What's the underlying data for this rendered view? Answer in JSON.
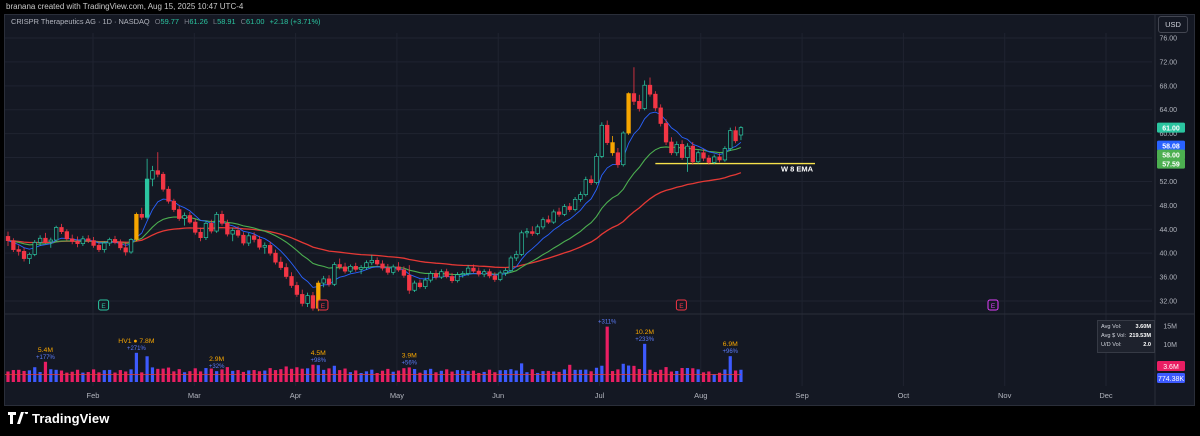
{
  "credit": "branana created with TradingView.com, Aug 15, 2025 10:47 UTC-4",
  "legend": {
    "symbol": "CRISPR Therapeutics AG · 1D · NASDAQ",
    "open_label": "O",
    "open": "59.77",
    "high_label": "H",
    "high": "61.26",
    "low_label": "L",
    "low": "58.91",
    "close_label": "C",
    "close": "61.00",
    "change": "+2.18 (+3.71%)"
  },
  "currency_button": "USD",
  "brand": "TradingView",
  "volume_stats": {
    "rows": [
      {
        "label": "Avg Vol:",
        "value": "3.60M"
      },
      {
        "label": "Avg $ Vol:",
        "value": "219.53M"
      },
      {
        "label": "U/D Vol:",
        "value": "2.0"
      }
    ]
  },
  "colors": {
    "up": "#2bc5a0",
    "down": "#f23645",
    "pocket": "#f7a600",
    "ema_blue": "#2962ff",
    "ema_green": "#4caf50",
    "ema_red": "#e53935",
    "hline": "#f7e24b",
    "vol_up": "#3d5afe",
    "vol_down": "#e91e63",
    "vol_label": "#f7a600"
  },
  "chart_data": {
    "type": "candlestick",
    "ticker": "CRSP",
    "timeframe": "1D",
    "price_axis_ticks": [
      76,
      72,
      68,
      64,
      60,
      56,
      52,
      48,
      44,
      40,
      36,
      32
    ],
    "price_range": [
      30,
      78
    ],
    "month_labels": [
      "Feb",
      "Mar",
      "Apr",
      "May",
      "Jun",
      "Jul",
      "Aug",
      "Sep",
      "Oct",
      "Nov",
      "Dec"
    ],
    "volume_axis_ticks": [
      "15M",
      "10M",
      "5M"
    ],
    "candles": [
      [
        42.8,
        43.6,
        41.2,
        42.1
      ],
      [
        42.1,
        42.5,
        40.2,
        40.6
      ],
      [
        40.6,
        41.3,
        39.6,
        40.3
      ],
      [
        40.3,
        40.9,
        38.6,
        39.1
      ],
      [
        39.1,
        40.1,
        38.2,
        39.8
      ],
      [
        39.8,
        42.2,
        39.5,
        41.8
      ],
      [
        41.8,
        43.0,
        41.2,
        42.5
      ],
      [
        42.5,
        43.4,
        41.6,
        41.9
      ],
      [
        41.9,
        42.6,
        40.9,
        42.2
      ],
      [
        42.2,
        44.6,
        41.9,
        44.3
      ],
      [
        44.3,
        44.9,
        43.2,
        43.6
      ],
      [
        43.6,
        44.0,
        42.1,
        42.4
      ],
      [
        42.4,
        43.1,
        41.5,
        42.0
      ],
      [
        42.0,
        42.8,
        41.0,
        41.6
      ],
      [
        41.6,
        42.9,
        41.2,
        42.4
      ],
      [
        42.4,
        43.0,
        41.7,
        42.1
      ],
      [
        42.1,
        42.7,
        40.9,
        41.3
      ],
      [
        41.3,
        41.8,
        40.2,
        40.6
      ],
      [
        40.6,
        42.0,
        40.1,
        41.7
      ],
      [
        41.7,
        42.6,
        41.2,
        42.3
      ],
      [
        42.3,
        42.9,
        41.5,
        41.8
      ],
      [
        41.8,
        42.3,
        40.5,
        40.9
      ],
      [
        40.9,
        41.9,
        39.6,
        40.2
      ],
      [
        40.2,
        42.5,
        39.9,
        42.3
      ],
      [
        42.3,
        46.8,
        42.0,
        46.5
      ],
      [
        46.5,
        47.6,
        45.6,
        46.0
      ],
      [
        46.0,
        55.8,
        45.7,
        52.4
      ],
      [
        52.4,
        54.6,
        51.2,
        53.8
      ],
      [
        53.8,
        56.9,
        52.7,
        53.2
      ],
      [
        53.2,
        53.6,
        50.3,
        50.7
      ],
      [
        50.7,
        51.2,
        48.3,
        48.7
      ],
      [
        48.7,
        49.1,
        46.9,
        47.3
      ],
      [
        47.3,
        47.9,
        45.4,
        45.8
      ],
      [
        45.8,
        46.8,
        44.6,
        46.3
      ],
      [
        46.3,
        46.9,
        44.9,
        45.2
      ],
      [
        45.2,
        45.7,
        43.1,
        43.5
      ],
      [
        43.5,
        44.3,
        42.0,
        42.6
      ],
      [
        42.6,
        45.4,
        42.2,
        45.0
      ],
      [
        45.0,
        45.6,
        43.3,
        43.7
      ],
      [
        43.7,
        46.9,
        43.4,
        46.5
      ],
      [
        46.5,
        47.1,
        44.6,
        45.0
      ],
      [
        45.0,
        45.6,
        42.8,
        43.2
      ],
      [
        43.2,
        44.2,
        42.0,
        43.8
      ],
      [
        43.8,
        44.5,
        42.6,
        43.0
      ],
      [
        43.0,
        43.5,
        41.3,
        41.7
      ],
      [
        41.7,
        43.4,
        41.2,
        42.9
      ],
      [
        42.9,
        43.5,
        41.8,
        42.3
      ],
      [
        42.3,
        42.9,
        40.6,
        41.0
      ],
      [
        41.0,
        41.8,
        39.9,
        41.3
      ],
      [
        41.3,
        41.9,
        39.6,
        40.0
      ],
      [
        40.0,
        40.6,
        38.1,
        38.5
      ],
      [
        38.5,
        39.4,
        37.2,
        37.6
      ],
      [
        37.6,
        38.3,
        35.7,
        36.1
      ],
      [
        36.1,
        36.8,
        34.2,
        34.6
      ],
      [
        34.6,
        35.2,
        32.7,
        33.1
      ],
      [
        33.1,
        33.9,
        31.1,
        31.6
      ],
      [
        31.6,
        33.4,
        31.0,
        32.9
      ],
      [
        32.9,
        33.5,
        30.4,
        30.8
      ],
      [
        30.8,
        35.4,
        30.3,
        35.0
      ],
      [
        35.0,
        36.2,
        34.3,
        35.7
      ],
      [
        35.7,
        36.3,
        34.4,
        34.8
      ],
      [
        34.8,
        38.5,
        34.5,
        38.1
      ],
      [
        38.1,
        39.1,
        37.3,
        37.7
      ],
      [
        37.7,
        38.4,
        36.6,
        37.0
      ],
      [
        37.0,
        38.1,
        36.7,
        37.8
      ],
      [
        37.8,
        38.4,
        36.9,
        37.3
      ],
      [
        37.3,
        38.0,
        36.5,
        37.6
      ],
      [
        37.6,
        38.8,
        37.2,
        38.4
      ],
      [
        38.4,
        39.7,
        38.0,
        38.8
      ],
      [
        38.8,
        39.3,
        37.9,
        38.2
      ],
      [
        38.2,
        38.8,
        37.1,
        37.5
      ],
      [
        37.5,
        38.2,
        36.4,
        36.8
      ],
      [
        36.8,
        38.1,
        36.4,
        37.7
      ],
      [
        37.7,
        38.5,
        36.9,
        37.2
      ],
      [
        37.2,
        37.8,
        35.9,
        36.3
      ],
      [
        36.3,
        38.0,
        33.2,
        33.8
      ],
      [
        33.8,
        35.4,
        33.5,
        35.0
      ],
      [
        35.0,
        35.6,
        34.1,
        34.4
      ],
      [
        34.4,
        35.9,
        34.0,
        35.5
      ],
      [
        35.5,
        37.0,
        35.1,
        36.6
      ],
      [
        36.6,
        37.2,
        35.6,
        36.0
      ],
      [
        36.0,
        37.3,
        35.7,
        36.9
      ],
      [
        36.9,
        37.4,
        35.8,
        36.1
      ],
      [
        36.1,
        36.7,
        35.0,
        35.4
      ],
      [
        35.4,
        36.8,
        35.1,
        36.4
      ],
      [
        36.4,
        37.0,
        35.9,
        36.6
      ],
      [
        36.6,
        38.0,
        36.2,
        37.5
      ],
      [
        37.5,
        38.1,
        36.7,
        37.0
      ],
      [
        37.0,
        37.6,
        36.1,
        36.5
      ],
      [
        36.5,
        37.3,
        36.0,
        36.9
      ],
      [
        36.9,
        37.4,
        35.8,
        36.2
      ],
      [
        36.2,
        36.8,
        35.2,
        35.6
      ],
      [
        35.6,
        37.1,
        35.3,
        36.7
      ],
      [
        36.7,
        37.5,
        36.2,
        37.1
      ],
      [
        37.1,
        39.6,
        36.8,
        39.2
      ],
      [
        39.2,
        40.4,
        38.7,
        39.8
      ],
      [
        39.8,
        43.8,
        39.5,
        43.4
      ],
      [
        43.4,
        44.2,
        42.6,
        43.6
      ],
      [
        43.6,
        44.5,
        42.9,
        43.3
      ],
      [
        43.3,
        44.8,
        43.0,
        44.4
      ],
      [
        44.4,
        46.0,
        44.0,
        45.6
      ],
      [
        45.6,
        46.3,
        44.9,
        45.2
      ],
      [
        45.2,
        47.3,
        44.9,
        46.9
      ],
      [
        46.9,
        47.6,
        46.1,
        46.5
      ],
      [
        46.5,
        48.2,
        46.2,
        47.8
      ],
      [
        47.8,
        48.4,
        46.9,
        47.3
      ],
      [
        47.3,
        49.4,
        47.0,
        49.0
      ],
      [
        49.0,
        50.3,
        48.6,
        49.8
      ],
      [
        49.8,
        52.8,
        49.5,
        52.3
      ],
      [
        52.3,
        53.0,
        51.4,
        51.8
      ],
      [
        51.8,
        56.7,
        51.5,
        56.2
      ],
      [
        56.2,
        61.9,
        55.9,
        61.4
      ],
      [
        61.4,
        62.2,
        58.1,
        58.5
      ],
      [
        58.5,
        59.6,
        56.3,
        56.8
      ],
      [
        56.8,
        57.6,
        54.3,
        54.8
      ],
      [
        54.8,
        60.4,
        54.5,
        60.1
      ],
      [
        60.1,
        66.9,
        59.8,
        66.7
      ],
      [
        66.7,
        71.1,
        64.8,
        65.4
      ],
      [
        65.4,
        66.5,
        63.7,
        64.2
      ],
      [
        64.2,
        68.9,
        63.9,
        68.1
      ],
      [
        68.1,
        69.4,
        66.2,
        66.6
      ],
      [
        66.6,
        67.1,
        63.8,
        64.3
      ],
      [
        64.3,
        64.9,
        61.2,
        61.7
      ],
      [
        61.7,
        62.4,
        58.1,
        58.6
      ],
      [
        58.6,
        59.4,
        56.4,
        56.8
      ],
      [
        56.8,
        58.7,
        56.3,
        58.2
      ],
      [
        58.2,
        58.9,
        55.6,
        56.0
      ],
      [
        56.0,
        58.4,
        53.6,
        57.9
      ],
      [
        57.9,
        58.6,
        54.8,
        55.3
      ],
      [
        55.3,
        57.2,
        55.0,
        56.8
      ],
      [
        56.8,
        57.4,
        55.4,
        55.9
      ],
      [
        55.9,
        56.4,
        54.8,
        55.2
      ],
      [
        55.2,
        56.5,
        54.9,
        56.1
      ],
      [
        56.1,
        56.7,
        55.2,
        55.6
      ],
      [
        55.6,
        57.9,
        55.3,
        57.5
      ],
      [
        57.5,
        61.0,
        57.1,
        60.5
      ],
      [
        60.5,
        61.2,
        58.4,
        58.8
      ],
      [
        59.77,
        61.26,
        58.91,
        61.0
      ]
    ],
    "ema_8_last": 58.08,
    "ema_21_last": 58.0,
    "ema_50_last": 57.59,
    "last_price": 61.0,
    "price_labels": [
      "61.00",
      "58.08",
      "58.00",
      "57.59"
    ],
    "annotation_line": {
      "label": "W 8 EMA",
      "price": 55.0
    },
    "earnings_markers": [
      {
        "label": "E",
        "index": 16,
        "past": true
      },
      {
        "label": "E",
        "index": 57,
        "past": true
      },
      {
        "label": "E",
        "index": 124,
        "past": true
      },
      {
        "label": "E",
        "index": 237,
        "past": false
      }
    ],
    "volume_labels": [
      {
        "index": 7,
        "value": "5.4M",
        "pct": "+177%",
        "prefix": ""
      },
      {
        "index": 24,
        "value": "7.8M",
        "pct": "+271%",
        "prefix": "HV1 ●"
      },
      {
        "index": 39,
        "value": "2.9M",
        "pct": "+32%",
        "prefix": ""
      },
      {
        "index": 58,
        "value": "4.5M",
        "pct": "+98%",
        "prefix": ""
      },
      {
        "index": 75,
        "value": "3.9M",
        "pct": "+56%",
        "prefix": ""
      },
      {
        "index": 112,
        "value": "",
        "pct": "+311%",
        "prefix": ""
      },
      {
        "index": 119,
        "value": "10.2M",
        "pct": "+233%",
        "prefix": ""
      },
      {
        "index": 135,
        "value": "6.9M",
        "pct": "+96%",
        "prefix": ""
      }
    ],
    "volume_price_labels": [
      "3.6M",
      "774.38K"
    ],
    "volume_range": [
      0,
      16
    ]
  }
}
